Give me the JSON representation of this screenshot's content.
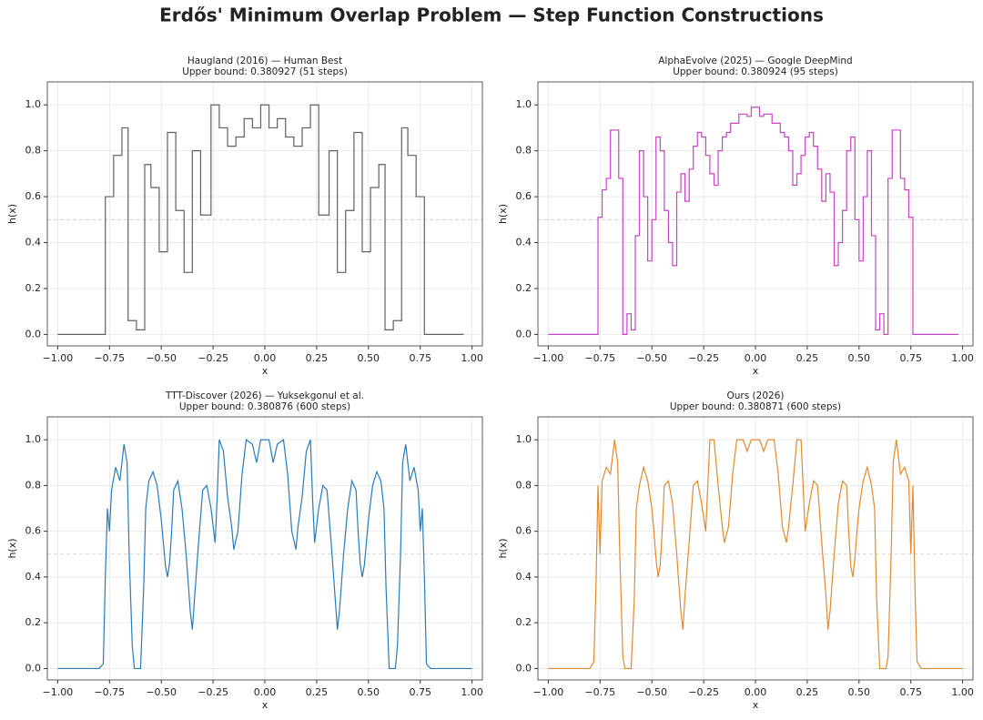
{
  "title": "Erdős' Minimum Overlap Problem — Step Function Constructions",
  "chart_data": [
    {
      "type": "line",
      "drawstyle": "steps-post",
      "title": "Haugland (2016) — Human Best",
      "subtitle": "Upper bound: 0.380927 (51 steps)",
      "xlabel": "x",
      "ylabel": "h(x)",
      "color": "#606060",
      "grid": true,
      "hline": 0.5,
      "x": [
        -1,
        -0.77,
        -0.73,
        -0.69,
        -0.66,
        -0.62,
        -0.58,
        -0.55,
        -0.51,
        -0.47,
        -0.43,
        -0.39,
        -0.35,
        -0.31,
        -0.26,
        -0.22,
        -0.18,
        -0.14,
        -0.1,
        -0.06,
        -0.02,
        0.02,
        0.06,
        0.1,
        0.14,
        0.18,
        0.22,
        0.26,
        0.31,
        0.35,
        0.39,
        0.43,
        0.47,
        0.51,
        0.55,
        0.58,
        0.62,
        0.66,
        0.69,
        0.73,
        0.77,
        0.96
      ],
      "values": [
        0,
        0.6,
        0.78,
        0.9,
        0.06,
        0.02,
        0.74,
        0.64,
        0.36,
        0.88,
        0.54,
        0.27,
        0.8,
        0.52,
        1.0,
        0.9,
        0.82,
        0.86,
        0.94,
        0.9,
        1.0,
        0.9,
        0.94,
        0.86,
        0.82,
        0.9,
        1.0,
        0.52,
        0.8,
        0.27,
        0.54,
        0.88,
        0.36,
        0.64,
        0.74,
        0.02,
        0.06,
        0.9,
        0.78,
        0.6,
        0,
        0
      ],
      "xlim": [
        -1.05,
        1.05
      ],
      "ylim": [
        -0.05,
        1.1
      ],
      "xticks": [
        {
          "value": -1,
          "label": "−1.00"
        },
        {
          "value": -0.75,
          "label": "−0.75"
        },
        {
          "value": -0.5,
          "label": "−0.50"
        },
        {
          "value": -0.25,
          "label": "−0.25"
        },
        {
          "value": 0,
          "label": "0.00"
        },
        {
          "value": 0.25,
          "label": "0.25"
        },
        {
          "value": 0.5,
          "label": "0.50"
        },
        {
          "value": 0.75,
          "label": "0.75"
        },
        {
          "value": 1,
          "label": "1.00"
        }
      ],
      "yticks": [
        {
          "value": 0,
          "label": "0.0"
        },
        {
          "value": 0.2,
          "label": "0.2"
        },
        {
          "value": 0.4,
          "label": "0.4"
        },
        {
          "value": 0.6,
          "label": "0.6"
        },
        {
          "value": 0.8,
          "label": "0.8"
        },
        {
          "value": 1,
          "label": "1.0"
        }
      ]
    },
    {
      "type": "line",
      "drawstyle": "steps-post",
      "title": "AlphaEvolve (2025) — Google DeepMind",
      "subtitle": "Upper bound: 0.380924 (95 steps)",
      "xlabel": "x",
      "ylabel": "h(x)",
      "color": "#c444c4",
      "grid": true,
      "hline": 0.5,
      "x": [
        -1,
        -0.76,
        -0.74,
        -0.72,
        -0.7,
        -0.66,
        -0.64,
        -0.62,
        -0.6,
        -0.58,
        -0.56,
        -0.54,
        -0.52,
        -0.5,
        -0.48,
        -0.46,
        -0.44,
        -0.42,
        -0.4,
        -0.38,
        -0.36,
        -0.34,
        -0.32,
        -0.3,
        -0.28,
        -0.26,
        -0.24,
        -0.22,
        -0.2,
        -0.18,
        -0.16,
        -0.14,
        -0.12,
        -0.08,
        -0.04,
        -0.02,
        0.02,
        0.04,
        0.08,
        0.12,
        0.14,
        0.16,
        0.18,
        0.2,
        0.22,
        0.24,
        0.26,
        0.28,
        0.3,
        0.32,
        0.34,
        0.36,
        0.38,
        0.4,
        0.42,
        0.44,
        0.46,
        0.48,
        0.5,
        0.52,
        0.54,
        0.56,
        0.58,
        0.6,
        0.62,
        0.64,
        0.66,
        0.7,
        0.72,
        0.74,
        0.76,
        0.98
      ],
      "values": [
        0,
        0.51,
        0.63,
        0.68,
        0.89,
        0.68,
        0,
        0.09,
        0.02,
        0.43,
        0.8,
        0.6,
        0.32,
        0.5,
        0.86,
        0.8,
        0.54,
        0.4,
        0.3,
        0.62,
        0.7,
        0.58,
        0.72,
        0.82,
        0.88,
        0.86,
        0.78,
        0.7,
        0.65,
        0.8,
        0.86,
        0.88,
        0.92,
        0.96,
        0.95,
        0.99,
        0.95,
        0.96,
        0.92,
        0.88,
        0.86,
        0.8,
        0.65,
        0.7,
        0.78,
        0.86,
        0.88,
        0.82,
        0.72,
        0.58,
        0.7,
        0.62,
        0.3,
        0.4,
        0.54,
        0.8,
        0.86,
        0.5,
        0.32,
        0.6,
        0.8,
        0.43,
        0.02,
        0.09,
        0,
        0.68,
        0.89,
        0.68,
        0.63,
        0.51,
        0,
        0
      ],
      "xlim": [
        -1.05,
        1.05
      ],
      "ylim": [
        -0.05,
        1.1
      ],
      "xticks": [
        {
          "value": -1,
          "label": "−1.00"
        },
        {
          "value": -0.75,
          "label": "−0.75"
        },
        {
          "value": -0.5,
          "label": "−0.50"
        },
        {
          "value": -0.25,
          "label": "−0.25"
        },
        {
          "value": 0,
          "label": "0.00"
        },
        {
          "value": 0.25,
          "label": "0.25"
        },
        {
          "value": 0.5,
          "label": "0.50"
        },
        {
          "value": 0.75,
          "label": "0.75"
        },
        {
          "value": 1,
          "label": "1.00"
        }
      ],
      "yticks": [
        {
          "value": 0,
          "label": "0.0"
        },
        {
          "value": 0.2,
          "label": "0.2"
        },
        {
          "value": 0.4,
          "label": "0.4"
        },
        {
          "value": 0.6,
          "label": "0.6"
        },
        {
          "value": 0.8,
          "label": "0.8"
        },
        {
          "value": 1,
          "label": "1.0"
        }
      ]
    },
    {
      "type": "line",
      "drawstyle": "default",
      "title": "TTT-Discover (2026) — Yuksekgonul et al.",
      "subtitle": "Upper bound: 0.380876 (600 steps)",
      "xlabel": "x",
      "ylabel": "h(x)",
      "color": "#2a7ab8",
      "grid": true,
      "hline": 0.5,
      "x": [
        -1,
        -0.8,
        -0.78,
        -0.77,
        -0.76,
        -0.75,
        -0.74,
        -0.72,
        -0.7,
        -0.68,
        -0.665,
        -0.655,
        -0.64,
        -0.63,
        -0.6,
        -0.585,
        -0.575,
        -0.56,
        -0.54,
        -0.52,
        -0.5,
        -0.49,
        -0.48,
        -0.47,
        -0.46,
        -0.45,
        -0.44,
        -0.42,
        -0.4,
        -0.38,
        -0.36,
        -0.35,
        -0.34,
        -0.32,
        -0.3,
        -0.28,
        -0.26,
        -0.24,
        -0.23,
        -0.22,
        -0.2,
        -0.18,
        -0.16,
        -0.15,
        -0.13,
        -0.11,
        -0.09,
        -0.06,
        -0.04,
        -0.02,
        0,
        0.02,
        0.04,
        0.06,
        0.09,
        0.11,
        0.13,
        0.15,
        0.16,
        0.18,
        0.2,
        0.22,
        0.23,
        0.24,
        0.26,
        0.28,
        0.3,
        0.32,
        0.34,
        0.35,
        0.36,
        0.38,
        0.4,
        0.42,
        0.44,
        0.45,
        0.46,
        0.47,
        0.48,
        0.49,
        0.5,
        0.52,
        0.54,
        0.56,
        0.575,
        0.585,
        0.6,
        0.63,
        0.64,
        0.655,
        0.665,
        0.68,
        0.7,
        0.72,
        0.74,
        0.75,
        0.76,
        0.77,
        0.78,
        0.8,
        1
      ],
      "values": [
        0,
        0,
        0.02,
        0.4,
        0.7,
        0.6,
        0.78,
        0.88,
        0.82,
        0.98,
        0.9,
        0.5,
        0.1,
        0,
        0,
        0.35,
        0.7,
        0.82,
        0.86,
        0.8,
        0.65,
        0.55,
        0.45,
        0.4,
        0.46,
        0.6,
        0.78,
        0.82,
        0.7,
        0.5,
        0.25,
        0.17,
        0.3,
        0.55,
        0.78,
        0.8,
        0.7,
        0.55,
        0.75,
        1.0,
        0.95,
        0.75,
        0.62,
        0.52,
        0.6,
        0.85,
        1.0,
        0.98,
        0.9,
        1.0,
        1.0,
        1.0,
        0.9,
        0.98,
        1.0,
        0.85,
        0.6,
        0.52,
        0.62,
        0.75,
        0.95,
        1.0,
        0.75,
        0.55,
        0.7,
        0.8,
        0.78,
        0.55,
        0.3,
        0.17,
        0.25,
        0.5,
        0.7,
        0.82,
        0.78,
        0.6,
        0.46,
        0.4,
        0.45,
        0.55,
        0.65,
        0.8,
        0.86,
        0.82,
        0.7,
        0.35,
        0,
        0,
        0.1,
        0.5,
        0.9,
        0.98,
        0.82,
        0.88,
        0.78,
        0.6,
        0.7,
        0.4,
        0.02,
        0,
        0
      ],
      "xlim": [
        -1.05,
        1.05
      ],
      "ylim": [
        -0.05,
        1.1
      ],
      "xticks": [
        {
          "value": -1,
          "label": "−1.00"
        },
        {
          "value": -0.75,
          "label": "−0.75"
        },
        {
          "value": -0.5,
          "label": "−0.50"
        },
        {
          "value": -0.25,
          "label": "−0.25"
        },
        {
          "value": 0,
          "label": "0.00"
        },
        {
          "value": 0.25,
          "label": "0.25"
        },
        {
          "value": 0.5,
          "label": "0.50"
        },
        {
          "value": 0.75,
          "label": "0.75"
        },
        {
          "value": 1,
          "label": "1.00"
        }
      ],
      "yticks": [
        {
          "value": 0,
          "label": "0.0"
        },
        {
          "value": 0.2,
          "label": "0.2"
        },
        {
          "value": 0.4,
          "label": "0.4"
        },
        {
          "value": 0.6,
          "label": "0.6"
        },
        {
          "value": 0.8,
          "label": "0.8"
        },
        {
          "value": 1,
          "label": "1.0"
        }
      ]
    },
    {
      "type": "line",
      "drawstyle": "default",
      "title": "Ours (2026)",
      "subtitle": "Upper bound: 0.380871 (600 steps)",
      "xlabel": "x",
      "ylabel": "h(x)",
      "color": "#e08a30",
      "grid": true,
      "hline": 0.5,
      "x": [
        -1,
        -0.8,
        -0.78,
        -0.77,
        -0.76,
        -0.75,
        -0.74,
        -0.72,
        -0.7,
        -0.68,
        -0.665,
        -0.655,
        -0.64,
        -0.63,
        -0.6,
        -0.585,
        -0.575,
        -0.56,
        -0.54,
        -0.52,
        -0.5,
        -0.49,
        -0.48,
        -0.47,
        -0.46,
        -0.45,
        -0.44,
        -0.42,
        -0.4,
        -0.38,
        -0.36,
        -0.35,
        -0.34,
        -0.32,
        -0.3,
        -0.28,
        -0.26,
        -0.24,
        -0.23,
        -0.22,
        -0.2,
        -0.18,
        -0.16,
        -0.15,
        -0.13,
        -0.11,
        -0.09,
        -0.06,
        -0.04,
        -0.02,
        0,
        0.02,
        0.04,
        0.06,
        0.09,
        0.11,
        0.13,
        0.15,
        0.16,
        0.18,
        0.2,
        0.22,
        0.23,
        0.24,
        0.26,
        0.28,
        0.3,
        0.32,
        0.34,
        0.35,
        0.36,
        0.38,
        0.4,
        0.42,
        0.44,
        0.45,
        0.46,
        0.47,
        0.48,
        0.49,
        0.5,
        0.52,
        0.54,
        0.56,
        0.575,
        0.585,
        0.6,
        0.63,
        0.64,
        0.655,
        0.665,
        0.68,
        0.7,
        0.72,
        0.74,
        0.75,
        0.76,
        0.77,
        0.78,
        0.8,
        1
      ],
      "values": [
        0,
        0,
        0.03,
        0.35,
        0.8,
        0.5,
        0.82,
        0.88,
        0.85,
        1.0,
        0.9,
        0.5,
        0.05,
        0,
        0,
        0.3,
        0.7,
        0.8,
        0.88,
        0.82,
        0.7,
        0.6,
        0.48,
        0.4,
        0.45,
        0.6,
        0.8,
        0.82,
        0.72,
        0.5,
        0.25,
        0.17,
        0.32,
        0.55,
        0.8,
        0.82,
        0.72,
        0.6,
        0.8,
        1.0,
        1.0,
        0.8,
        0.62,
        0.55,
        0.62,
        0.85,
        1.0,
        1.0,
        0.95,
        1.0,
        1.0,
        1.0,
        0.95,
        1.0,
        1.0,
        0.85,
        0.62,
        0.55,
        0.62,
        0.8,
        1.0,
        1.0,
        0.8,
        0.6,
        0.72,
        0.82,
        0.8,
        0.55,
        0.32,
        0.17,
        0.25,
        0.5,
        0.72,
        0.82,
        0.8,
        0.6,
        0.45,
        0.4,
        0.48,
        0.6,
        0.7,
        0.82,
        0.88,
        0.8,
        0.7,
        0.3,
        0,
        0,
        0.05,
        0.5,
        0.9,
        1.0,
        0.85,
        0.88,
        0.82,
        0.5,
        0.8,
        0.35,
        0.03,
        0,
        0
      ],
      "xlim": [
        -1.05,
        1.05
      ],
      "ylim": [
        -0.05,
        1.1
      ],
      "xticks": [
        {
          "value": -1,
          "label": "−1.00"
        },
        {
          "value": -0.75,
          "label": "−0.75"
        },
        {
          "value": -0.5,
          "label": "−0.50"
        },
        {
          "value": -0.25,
          "label": "−0.25"
        },
        {
          "value": 0,
          "label": "0.00"
        },
        {
          "value": 0.25,
          "label": "0.25"
        },
        {
          "value": 0.5,
          "label": "0.50"
        },
        {
          "value": 0.75,
          "label": "0.75"
        },
        {
          "value": 1,
          "label": "1.00"
        }
      ],
      "yticks": [
        {
          "value": 0,
          "label": "0.0"
        },
        {
          "value": 0.2,
          "label": "0.2"
        },
        {
          "value": 0.4,
          "label": "0.4"
        },
        {
          "value": 0.6,
          "label": "0.6"
        },
        {
          "value": 0.8,
          "label": "0.8"
        },
        {
          "value": 1,
          "label": "1.0"
        }
      ]
    }
  ]
}
